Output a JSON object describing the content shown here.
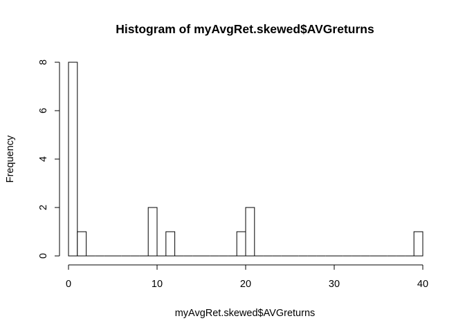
{
  "chart_data": {
    "type": "bar",
    "title": "Histogram of myAvgRet.skewed$AVGreturns",
    "xlabel": "myAvgRet.skewed$AVGreturns",
    "ylabel": "Frequency",
    "xlim": [
      0,
      40
    ],
    "ylim": [
      0,
      8
    ],
    "xticks": [
      0,
      10,
      20,
      30,
      40
    ],
    "yticks": [
      0,
      2,
      4,
      6,
      8
    ],
    "grid": false,
    "bins": [
      {
        "x0": 0,
        "x1": 1,
        "count": 8
      },
      {
        "x0": 1,
        "x1": 2,
        "count": 1
      },
      {
        "x0": 2,
        "x1": 3,
        "count": 0
      },
      {
        "x0": 3,
        "x1": 4,
        "count": 0
      },
      {
        "x0": 4,
        "x1": 5,
        "count": 0
      },
      {
        "x0": 5,
        "x1": 6,
        "count": 0
      },
      {
        "x0": 6,
        "x1": 7,
        "count": 0
      },
      {
        "x0": 7,
        "x1": 8,
        "count": 0
      },
      {
        "x0": 8,
        "x1": 9,
        "count": 0
      },
      {
        "x0": 9,
        "x1": 10,
        "count": 2
      },
      {
        "x0": 10,
        "x1": 11,
        "count": 0
      },
      {
        "x0": 11,
        "x1": 12,
        "count": 1
      },
      {
        "x0": 12,
        "x1": 13,
        "count": 0
      },
      {
        "x0": 13,
        "x1": 14,
        "count": 0
      },
      {
        "x0": 14,
        "x1": 15,
        "count": 0
      },
      {
        "x0": 15,
        "x1": 16,
        "count": 0
      },
      {
        "x0": 16,
        "x1": 17,
        "count": 0
      },
      {
        "x0": 17,
        "x1": 18,
        "count": 0
      },
      {
        "x0": 18,
        "x1": 19,
        "count": 0
      },
      {
        "x0": 19,
        "x1": 20,
        "count": 1
      },
      {
        "x0": 20,
        "x1": 21,
        "count": 2
      },
      {
        "x0": 21,
        "x1": 22,
        "count": 0
      },
      {
        "x0": 22,
        "x1": 23,
        "count": 0
      },
      {
        "x0": 23,
        "x1": 24,
        "count": 0
      },
      {
        "x0": 24,
        "x1": 25,
        "count": 0
      },
      {
        "x0": 25,
        "x1": 26,
        "count": 0
      },
      {
        "x0": 26,
        "x1": 27,
        "count": 0
      },
      {
        "x0": 27,
        "x1": 28,
        "count": 0
      },
      {
        "x0": 28,
        "x1": 29,
        "count": 0
      },
      {
        "x0": 29,
        "x1": 30,
        "count": 0
      },
      {
        "x0": 30,
        "x1": 31,
        "count": 0
      },
      {
        "x0": 31,
        "x1": 32,
        "count": 0
      },
      {
        "x0": 32,
        "x1": 33,
        "count": 0
      },
      {
        "x0": 33,
        "x1": 34,
        "count": 0
      },
      {
        "x0": 34,
        "x1": 35,
        "count": 0
      },
      {
        "x0": 35,
        "x1": 36,
        "count": 0
      },
      {
        "x0": 36,
        "x1": 37,
        "count": 0
      },
      {
        "x0": 37,
        "x1": 38,
        "count": 0
      },
      {
        "x0": 38,
        "x1": 39,
        "count": 0
      },
      {
        "x0": 39,
        "x1": 40,
        "count": 1
      }
    ],
    "colors": {
      "bar_fill": "#ffffff",
      "bar_stroke": "#000000"
    }
  }
}
